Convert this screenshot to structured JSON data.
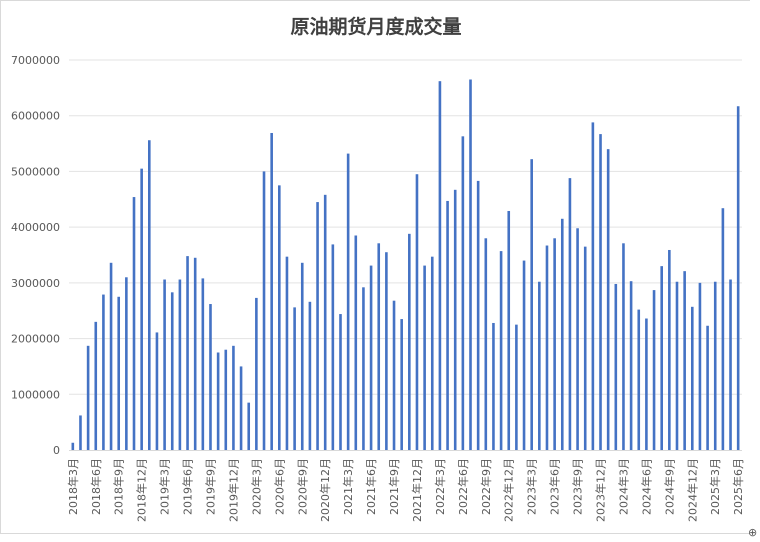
{
  "chart_data": {
    "type": "bar",
    "title": "原油期货月度成交量",
    "xlabel": "",
    "ylabel": "",
    "ylim": [
      0,
      7000000
    ],
    "yticks": [
      0,
      1000000,
      2000000,
      3000000,
      4000000,
      5000000,
      6000000,
      7000000
    ],
    "ytick_labels": [
      "0",
      "1000000",
      "2000000",
      "3000000",
      "4000000",
      "5000000",
      "6000000",
      "7000000"
    ],
    "grid": true,
    "legend": "none",
    "bar_color": "#4472c4",
    "categories": [
      "2018年3月",
      "2018年4月",
      "2018年5月",
      "2018年6月",
      "2018年7月",
      "2018年8月",
      "2018年9月",
      "2018年10月",
      "2018年11月",
      "2018年12月",
      "2019年1月",
      "2019年2月",
      "2019年3月",
      "2019年4月",
      "2019年5月",
      "2019年6月",
      "2019年7月",
      "2019年8月",
      "2019年9月",
      "2019年10月",
      "2019年11月",
      "2019年12月",
      "2020年1月",
      "2020年2月",
      "2020年3月",
      "2020年4月",
      "2020年5月",
      "2020年6月",
      "2020年7月",
      "2020年8月",
      "2020年9月",
      "2020年10月",
      "2020年11月",
      "2020年12月",
      "2021年1月",
      "2021年2月",
      "2021年3月",
      "2021年4月",
      "2021年5月",
      "2021年6月",
      "2021年7月",
      "2021年8月",
      "2021年9月",
      "2021年10月",
      "2021年11月",
      "2021年12月",
      "2022年1月",
      "2022年2月",
      "2022年3月",
      "2022年4月",
      "2022年5月",
      "2022年6月",
      "2022年7月",
      "2022年8月",
      "2022年9月",
      "2022年10月",
      "2022年11月",
      "2022年12月",
      "2023年1月",
      "2023年2月",
      "2023年3月",
      "2023年4月",
      "2023年5月",
      "2023年6月",
      "2023年7月",
      "2023年8月",
      "2023年9月",
      "2023年10月",
      "2023年11月",
      "2023年12月",
      "2024年1月",
      "2024年2月",
      "2024年3月",
      "2024年4月",
      "2024年5月",
      "2024年6月",
      "2024年7月",
      "2024年8月",
      "2024年9月",
      "2024年10月",
      "2024年11月",
      "2024年12月",
      "2025年1月",
      "2025年2月",
      "2025年3月",
      "2025年4月",
      "2025年5月",
      "2025年6月"
    ],
    "values": [
      130000,
      620000,
      1870000,
      2300000,
      2790000,
      3360000,
      2750000,
      3100000,
      4540000,
      5050000,
      5560000,
      2110000,
      3060000,
      2830000,
      3060000,
      3480000,
      3450000,
      3080000,
      2620000,
      1750000,
      1800000,
      1870000,
      1500000,
      850000,
      2730000,
      5000000,
      5690000,
      4750000,
      3470000,
      2560000,
      3360000,
      2660000,
      4450000,
      4580000,
      3690000,
      2440000,
      5320000,
      3850000,
      2920000,
      3310000,
      3710000,
      3550000,
      2680000,
      2350000,
      3880000,
      4950000,
      3310000,
      3470000,
      6620000,
      4470000,
      4670000,
      5630000,
      6650000,
      4830000,
      3800000,
      2280000,
      3570000,
      4290000,
      2250000,
      3400000,
      5220000,
      3020000,
      3670000,
      3800000,
      4150000,
      4880000,
      3980000,
      3650000,
      5880000,
      5670000,
      5400000,
      2980000,
      3710000,
      3030000,
      2520000,
      2360000,
      2870000,
      3300000,
      3590000,
      3020000,
      3210000,
      2570000,
      3000000,
      2230000,
      3020000,
      4340000,
      3060000,
      6170000
    ],
    "shown_tick_labels": [
      "2018年3月",
      "2018年6月",
      "2018年9月",
      "2018年12月",
      "2019年3月",
      "2019年6月",
      "2019年9月",
      "2019年12月",
      "2020年3月",
      "2020年6月",
      "2020年9月",
      "2020年12月",
      "2021年3月",
      "2021年6月",
      "2021年9月",
      "2021年12月",
      "2022年3月",
      "2022年6月",
      "2022年9月",
      "2022年12月",
      "2023年3月",
      "2023年6月",
      "2023年9月",
      "2023年12月",
      "2024年3月",
      "2024年6月",
      "2024年9月",
      "2024年12月",
      "2025年3月",
      "2025年6月"
    ]
  },
  "corner_mark": "⊕"
}
